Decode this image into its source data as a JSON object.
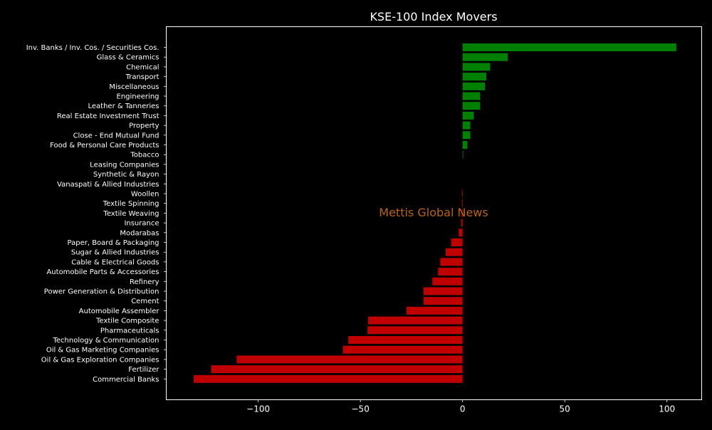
{
  "chart_data": {
    "type": "bar",
    "orientation": "horizontal",
    "title": "KSE-100 Index Movers",
    "xlabel": "",
    "ylabel": "",
    "xlim": [
      -145,
      117
    ],
    "xticks": [
      -100,
      -50,
      0,
      50,
      100
    ],
    "xtick_labels": [
      "−100",
      "−50",
      "0",
      "50",
      "100"
    ],
    "grid": false,
    "watermark": "Mettis Global News",
    "colors": {
      "background": "#000000",
      "text": "#ffffff",
      "positive": "#008000",
      "negative": "#c00000",
      "watermark": "#b8621b"
    },
    "categories": [
      "Inv. Banks / Inv. Cos. / Securities Cos.",
      "Glass & Ceramics",
      "Chemical",
      "Transport",
      "Miscellaneous",
      "Engineering",
      "Leather & Tanneries",
      "Real Estate Investment Trust",
      "Property",
      "Close - End Mutual Fund",
      "Food & Personal Care Products",
      "Tobacco",
      "Leasing Companies",
      "Synthetic & Rayon",
      "Vanaspati & Allied Industries",
      "Woollen",
      "Textile Spinning",
      "Textile Weaving",
      "Insurance",
      "Modarabas",
      "Paper, Board & Packaging",
      "Sugar & Allied Industries",
      "Cable & Electrical Goods",
      "Automobile Parts & Accessories",
      "Refinery",
      "Power Generation & Distribution",
      "Cement",
      "Automobile Assembler",
      "Textile Composite",
      "Pharmaceuticals",
      "Technology & Communication",
      "Oil & Gas Marketing Companies",
      "Oil & Gas Exploration Companies",
      "Fertilizer",
      "Commercial Banks"
    ],
    "values": [
      104.6,
      22.1,
      13.5,
      11.6,
      11.0,
      8.6,
      8.6,
      5.5,
      3.8,
      3.8,
      2.4,
      0.3,
      0.0,
      0.0,
      0.0,
      -0.3,
      -0.3,
      -0.5,
      -0.7,
      -1.9,
      -5.6,
      -8.3,
      -10.9,
      -12.0,
      -14.8,
      -19.1,
      -19.1,
      -27.4,
      -46.2,
      -46.5,
      -55.9,
      -58.6,
      -110.5,
      -123.0,
      -131.6
    ]
  }
}
